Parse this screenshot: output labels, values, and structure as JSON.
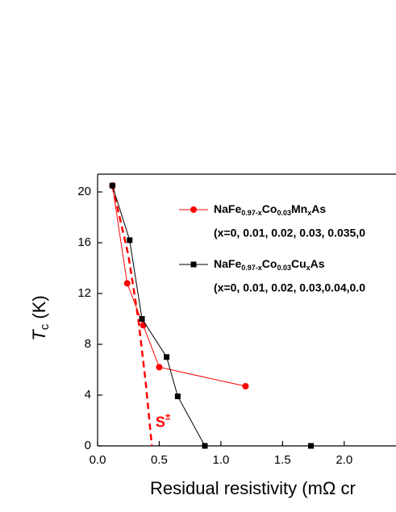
{
  "chart_data": {
    "type": "line",
    "xlabel": "Residual resistivity (mΩ cr",
    "ylabel": [
      "T",
      "c",
      " (K)"
    ],
    "xlim": [
      0,
      2.42
    ],
    "ylim": [
      0,
      21.4
    ],
    "xticks": [
      {
        "value": 0,
        "label": "0.0"
      },
      {
        "value": 0.5,
        "label": "0.5"
      },
      {
        "value": 1,
        "label": "1.0"
      },
      {
        "value": 1.5,
        "label": "1.5"
      },
      {
        "value": 2,
        "label": "2.0"
      }
    ],
    "yticks": [
      0,
      4,
      8,
      12,
      16,
      20
    ],
    "series": [
      {
        "name": [
          "NaFe",
          "0.97-x",
          "Co",
          "0.03",
          "Mn",
          "x",
          "As"
        ],
        "note": "(x=0, 0.01, 0.02, 0.03, 0.035,0",
        "color": "#ff0000",
        "marker": "circle",
        "x": [
          0.12,
          0.24,
          0.37,
          0.5,
          1.2
        ],
        "values": [
          20.5,
          12.8,
          9.5,
          6.2,
          4.7
        ]
      },
      {
        "name": [
          "NaFe",
          "0.97-x",
          "Co",
          "0.03",
          "Cu",
          "x",
          "As"
        ],
        "note": "(x=0, 0.01, 0.02, 0.03,0.04,0.0",
        "color": "#000000",
        "marker": "square",
        "x": [
          0.12,
          0.26,
          0.36,
          0.56,
          0.65,
          0.87,
          1.73
        ],
        "values": [
          20.5,
          16.2,
          10,
          7,
          3.9,
          0,
          0
        ]
      }
    ],
    "curve": {
      "color": "#ff0000",
      "x": [
        0.12,
        0.25,
        0.33,
        0.39,
        0.44
      ],
      "values": [
        20.5,
        15,
        10,
        5,
        0
      ]
    },
    "annotation": {
      "text": "S",
      "sup": "±",
      "x": 0.47,
      "y": 1.8
    }
  }
}
